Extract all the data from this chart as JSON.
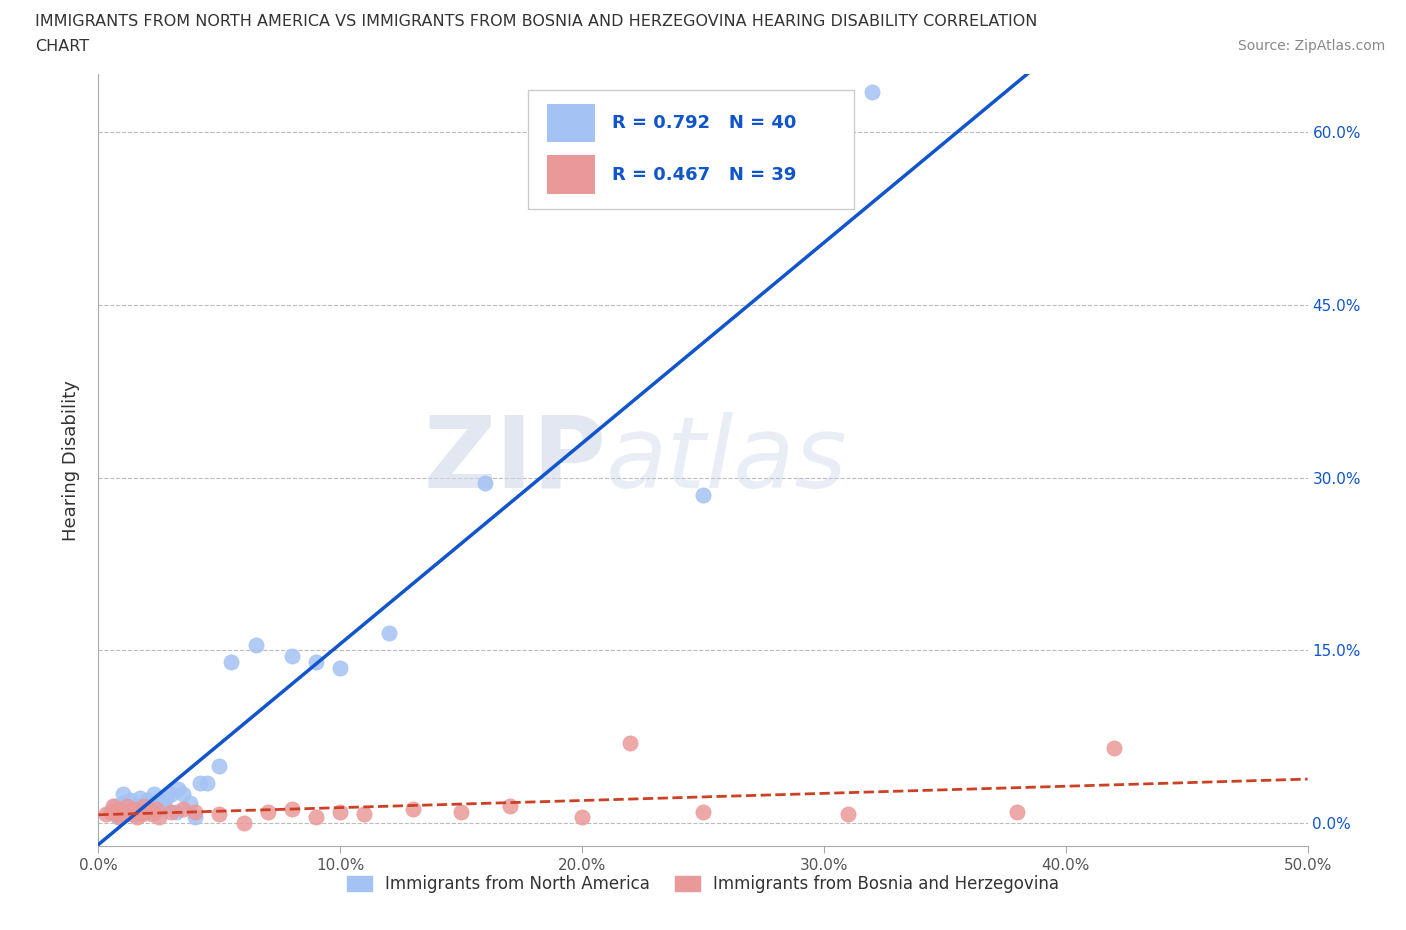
{
  "title_line1": "IMMIGRANTS FROM NORTH AMERICA VS IMMIGRANTS FROM BOSNIA AND HERZEGOVINA HEARING DISABILITY CORRELATION",
  "title_line2": "CHART",
  "source": "Source: ZipAtlas.com",
  "xlabel_label": "Immigrants from North America",
  "xlabel_label2": "Immigrants from Bosnia and Herzegovina",
  "ylabel": "Hearing Disability",
  "xlim": [
    0.0,
    0.5
  ],
  "ylim": [
    -0.02,
    0.65
  ],
  "yticks": [
    0.0,
    0.15,
    0.3,
    0.45,
    0.6
  ],
  "xticks": [
    0.0,
    0.1,
    0.2,
    0.3,
    0.4,
    0.5
  ],
  "blue_R": 0.792,
  "blue_N": 40,
  "pink_R": 0.467,
  "pink_N": 39,
  "blue_color": "#a4c2f4",
  "pink_color": "#ea9999",
  "blue_line_color": "#1155cc",
  "pink_line_color": "#cc4125",
  "watermark_zip": "ZIP",
  "watermark_atlas": "atlas",
  "blue_scatter_x": [
    0.005,
    0.007,
    0.008,
    0.009,
    0.01,
    0.01,
    0.012,
    0.013,
    0.015,
    0.016,
    0.017,
    0.018,
    0.019,
    0.02,
    0.02,
    0.022,
    0.023,
    0.024,
    0.025,
    0.026,
    0.027,
    0.028,
    0.03,
    0.032,
    0.033,
    0.035,
    0.038,
    0.04,
    0.042,
    0.045,
    0.05,
    0.055,
    0.065,
    0.08,
    0.09,
    0.1,
    0.12,
    0.16,
    0.25,
    0.32
  ],
  "blue_scatter_y": [
    0.01,
    0.015,
    0.005,
    0.012,
    0.018,
    0.025,
    0.01,
    0.02,
    0.008,
    0.015,
    0.022,
    0.01,
    0.018,
    0.012,
    0.02,
    0.015,
    0.025,
    0.01,
    0.02,
    0.018,
    0.015,
    0.022,
    0.025,
    0.01,
    0.03,
    0.025,
    0.018,
    0.005,
    0.035,
    0.035,
    0.05,
    0.14,
    0.155,
    0.145,
    0.14,
    0.135,
    0.165,
    0.295,
    0.285,
    0.635
  ],
  "pink_scatter_x": [
    0.003,
    0.005,
    0.006,
    0.007,
    0.008,
    0.009,
    0.01,
    0.011,
    0.012,
    0.013,
    0.014,
    0.015,
    0.016,
    0.017,
    0.018,
    0.019,
    0.02,
    0.022,
    0.024,
    0.025,
    0.03,
    0.035,
    0.04,
    0.05,
    0.06,
    0.07,
    0.08,
    0.09,
    0.1,
    0.11,
    0.13,
    0.15,
    0.17,
    0.2,
    0.22,
    0.25,
    0.31,
    0.38,
    0.42
  ],
  "pink_scatter_y": [
    0.008,
    0.01,
    0.015,
    0.008,
    0.012,
    0.005,
    0.01,
    0.008,
    0.015,
    0.01,
    0.008,
    0.012,
    0.005,
    0.01,
    0.008,
    0.015,
    0.01,
    0.008,
    0.012,
    0.005,
    0.01,
    0.012,
    0.01,
    0.008,
    0.0,
    0.01,
    0.012,
    0.005,
    0.01,
    0.008,
    0.012,
    0.01,
    0.015,
    0.005,
    0.07,
    0.01,
    0.008,
    0.01,
    0.065
  ]
}
